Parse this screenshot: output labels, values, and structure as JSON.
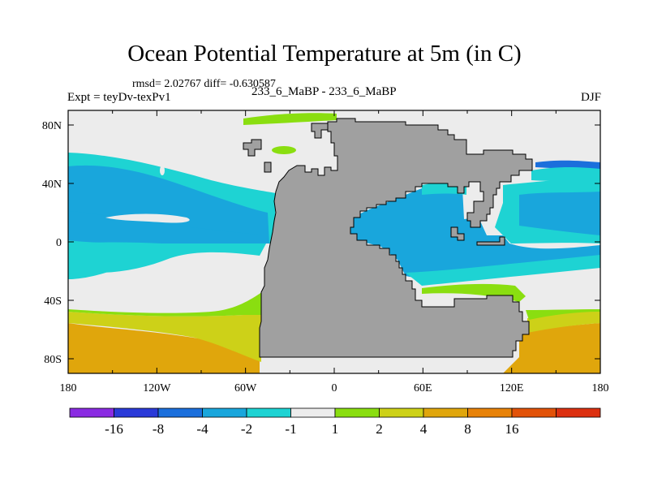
{
  "chart_data": {
    "type": "heatmap",
    "title": "Ocean Potential Temperature at 5m (in C)",
    "stats_text": "rmsd= 2.02767  diff= -0.630587",
    "left_subtitle": "Expt = teyDv-texPv1",
    "center_subtitle": "233_6_MaBP - 233_6_MaBP",
    "right_subtitle": "DJF",
    "x_range": [
      -180,
      180
    ],
    "y_range": [
      -90,
      90
    ],
    "x_ticks": [
      {
        "value": -180,
        "label": "180"
      },
      {
        "value": -120,
        "label": "120W"
      },
      {
        "value": -60,
        "label": "60W"
      },
      {
        "value": 0,
        "label": "0"
      },
      {
        "value": 60,
        "label": "60E"
      },
      {
        "value": 120,
        "label": "120E"
      },
      {
        "value": 180,
        "label": "180"
      }
    ],
    "y_ticks": [
      {
        "value": 80,
        "label": "80N"
      },
      {
        "value": 40,
        "label": "40N"
      },
      {
        "value": 0,
        "label": "0"
      },
      {
        "value": -40,
        "label": "40S"
      },
      {
        "value": -80,
        "label": "80S"
      }
    ],
    "colorbar": {
      "colors": [
        "#8a2be2",
        "#2a3ad8",
        "#1b6fdc",
        "#19a6dc",
        "#1ed3d3",
        "#ececec",
        "#8ade10",
        "#cdd118",
        "#e0a60c",
        "#e88208",
        "#e25208",
        "#dc3010"
      ],
      "labels": [
        "-16",
        "-8",
        "-4",
        "-2",
        "-1",
        "1",
        "2",
        "4",
        "8",
        "16"
      ]
    },
    "land_color": "#a0a0a0"
  }
}
